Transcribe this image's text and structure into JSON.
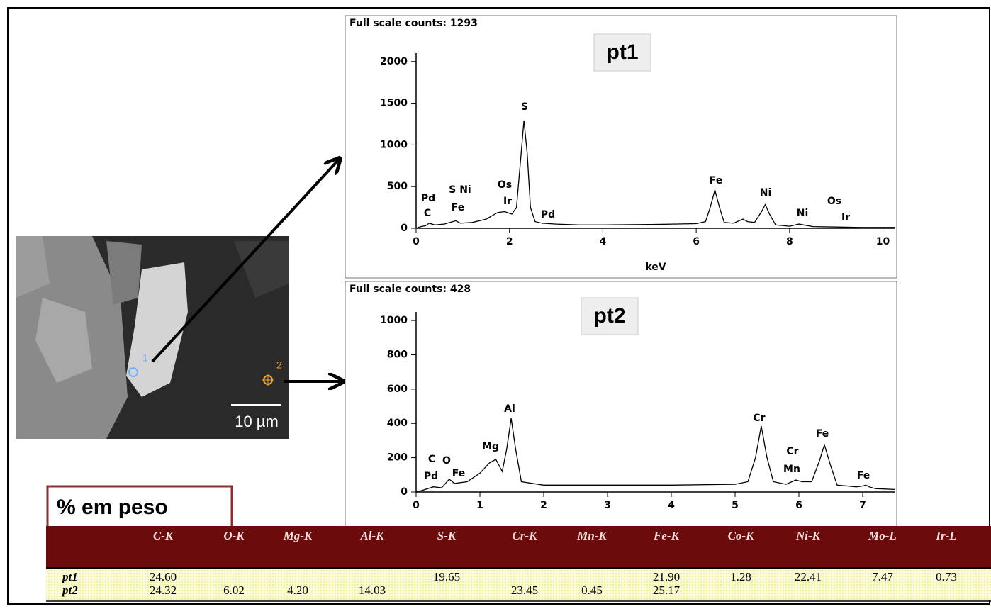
{
  "image": {
    "scale_label": "10 µm",
    "points": [
      "1",
      "2"
    ]
  },
  "chart_data": [
    {
      "type": "line",
      "title": "Full scale counts: 1293",
      "label": "pt1",
      "x_label": "keV",
      "xlim": [
        0,
        10.25
      ],
      "ylim": [
        0,
        2100
      ],
      "xticks": [
        0,
        2,
        4,
        6,
        8,
        10
      ],
      "yticks": [
        0,
        500,
        1000,
        1500,
        2000
      ],
      "annotations": [
        "Pd",
        "C",
        "S Ni",
        "Fe",
        "Os",
        "Ir",
        "S",
        "Pd",
        "Fe",
        "Ni",
        "Ni",
        "Os",
        "Ir"
      ],
      "series": [
        {
          "color": "#000000",
          "x": [
            0,
            0.1,
            0.2,
            0.28,
            0.4,
            0.6,
            0.85,
            0.95,
            1.2,
            1.5,
            1.75,
            1.9,
            2.05,
            2.15,
            2.25,
            2.31,
            2.38,
            2.45,
            2.55,
            2.7,
            3,
            3.5,
            4,
            5,
            5.5,
            6,
            6.2,
            6.3,
            6.4,
            6.5,
            6.6,
            6.8,
            7,
            7.1,
            7.25,
            7.4,
            7.48,
            7.56,
            7.7,
            8,
            8.2,
            8.3,
            8.5,
            9,
            9.5,
            10,
            10.25
          ],
          "values": [
            0,
            20,
            30,
            60,
            40,
            50,
            90,
            60,
            70,
            110,
            190,
            200,
            170,
            250,
            900,
            1293,
            900,
            250,
            80,
            60,
            50,
            40,
            40,
            45,
            50,
            55,
            80,
            250,
            460,
            250,
            70,
            60,
            110,
            80,
            70,
            200,
            285,
            180,
            40,
            25,
            50,
            40,
            20,
            15,
            10,
            10,
            10
          ]
        }
      ]
    },
    {
      "type": "line",
      "title": "Full scale counts: 428",
      "label": "pt2",
      "xlim": [
        0,
        7.5
      ],
      "ylim": [
        0,
        1050
      ],
      "xticks": [
        0,
        1,
        2,
        3,
        4,
        5,
        6,
        7
      ],
      "yticks": [
        0,
        200,
        400,
        600,
        800,
        1000
      ],
      "annotations": [
        "C",
        "O",
        "Pd",
        "Fe",
        "Mg",
        "Al",
        "Cr",
        "Cr",
        "Mn",
        "Fe",
        "Fe"
      ],
      "series": [
        {
          "color": "#000000",
          "x": [
            0,
            0.1,
            0.27,
            0.4,
            0.52,
            0.6,
            0.8,
            1,
            1.15,
            1.25,
            1.35,
            1.42,
            1.49,
            1.56,
            1.65,
            2,
            3,
            4,
            5,
            5.2,
            5.32,
            5.41,
            5.5,
            5.6,
            5.8,
            5.95,
            6.05,
            6.2,
            6.32,
            6.4,
            6.5,
            6.6,
            6.9,
            7,
            7.05,
            7.1,
            7.2,
            7.5
          ],
          "values": [
            0,
            10,
            30,
            25,
            75,
            50,
            60,
            110,
            170,
            190,
            120,
            250,
            430,
            250,
            60,
            40,
            40,
            40,
            45,
            60,
            200,
            385,
            200,
            60,
            45,
            70,
            60,
            60,
            180,
            275,
            150,
            40,
            30,
            35,
            40,
            30,
            20,
            15
          ]
        }
      ]
    }
  ],
  "table": {
    "title": "% em peso",
    "columns": [
      null,
      "C-K",
      "O-K",
      "Mg-K",
      "Al-K",
      "S-K",
      "Cr-K",
      "Mn-K",
      "Fe-K",
      "Co-K",
      "Ni-K",
      "Mo-L",
      "Ir-L"
    ],
    "rows": [
      [
        "pt1",
        "24.60",
        null,
        null,
        null,
        "19.65",
        null,
        null,
        "21.90",
        "1.28",
        "22.41",
        "7.47",
        "0.73"
      ],
      [
        "pt2",
        "24.32",
        "6.02",
        "4.20",
        "14.03",
        null,
        "23.45",
        "0.45",
        "25.17",
        null,
        null,
        null,
        null
      ]
    ]
  }
}
